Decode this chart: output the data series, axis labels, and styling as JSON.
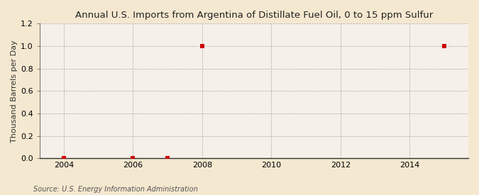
{
  "title": "Annual U.S. Imports from Argentina of Distillate Fuel Oil, 0 to 15 ppm Sulfur",
  "ylabel": "Thousand Barrels per Day",
  "source": "Source: U.S. Energy Information Administration",
  "background_color": "#f5e8d0",
  "plot_bg_color": "#f5f0e8",
  "xlim": [
    2003.3,
    2015.7
  ],
  "ylim": [
    0.0,
    1.2
  ],
  "xticks": [
    2004,
    2006,
    2008,
    2010,
    2012,
    2014
  ],
  "yticks": [
    0.0,
    0.2,
    0.4,
    0.6,
    0.8,
    1.0,
    1.2
  ],
  "data_x": [
    2004,
    2006,
    2007,
    2008,
    2015
  ],
  "data_y": [
    0.0,
    0.0,
    0.0,
    1.0,
    1.0
  ],
  "marker_color": "#cc0000",
  "marker_size": 4,
  "grid_color": "#aaaaaa",
  "title_fontsize": 9.5,
  "axis_fontsize": 8,
  "tick_fontsize": 8,
  "source_fontsize": 7
}
